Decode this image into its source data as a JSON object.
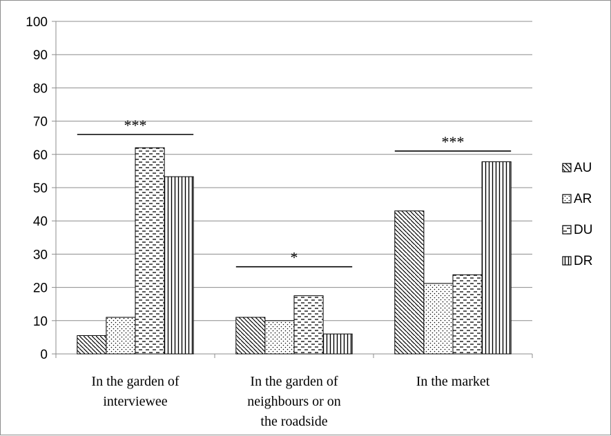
{
  "chart_data": {
    "type": "bar",
    "title": "",
    "xlabel": "",
    "ylabel": "",
    "ylim": [
      0,
      100
    ],
    "yticks": [
      0,
      10,
      20,
      30,
      40,
      50,
      60,
      70,
      80,
      90,
      100
    ],
    "grid": true,
    "legend_position": "right",
    "categories": [
      [
        "In the garden of",
        "interviewee"
      ],
      [
        "In the garden of",
        "neighbours or on",
        "the roadside"
      ],
      [
        "In the market"
      ]
    ],
    "series": [
      {
        "name": "AU",
        "pattern": "diagonal",
        "values": [
          5.5,
          11,
          43
        ]
      },
      {
        "name": "AR",
        "pattern": "dots",
        "values": [
          11,
          10,
          21.2
        ]
      },
      {
        "name": "DU",
        "pattern": "dashes",
        "values": [
          62,
          17.5,
          23.8
        ]
      },
      {
        "name": "DR",
        "pattern": "vertical",
        "values": [
          53.3,
          6,
          57.8
        ]
      }
    ],
    "significance": [
      {
        "category": 0,
        "label": "***",
        "level": 66
      },
      {
        "category": 1,
        "label": "*",
        "level": 26.2
      },
      {
        "category": 2,
        "label": "***",
        "level": 61
      }
    ]
  }
}
